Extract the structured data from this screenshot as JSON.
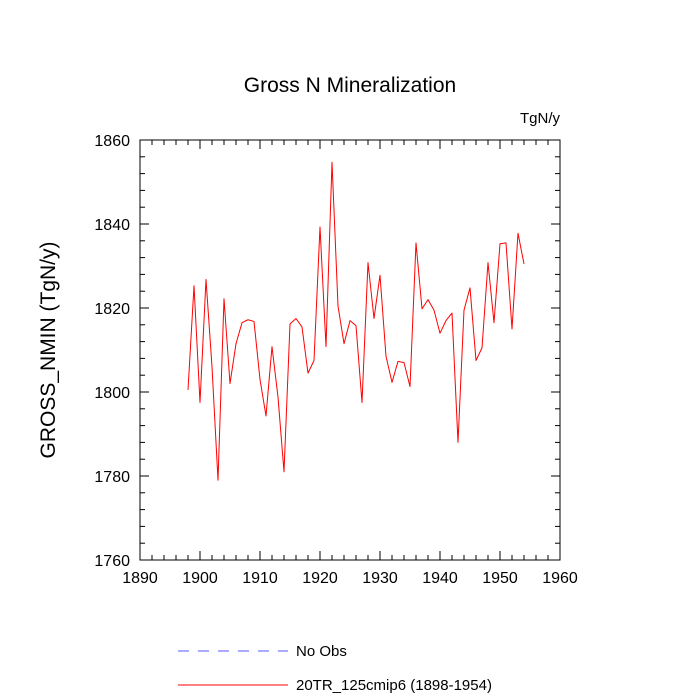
{
  "chart_data": {
    "type": "line",
    "title": "Gross N Mineralization",
    "units_label": "TgN/y",
    "xlabel": "",
    "ylabel": "GROSS_NMIN  (TgN/y)",
    "xlim": [
      1890,
      1960
    ],
    "ylim": [
      1760,
      1860
    ],
    "x_ticks": [
      1890,
      1900,
      1910,
      1920,
      1930,
      1940,
      1950,
      1960
    ],
    "y_ticks": [
      1760,
      1780,
      1800,
      1820,
      1840,
      1860
    ],
    "grid": false,
    "legend_position": "bottom",
    "series": [
      {
        "name": "20TR_125cmip6 (1898-1954)",
        "color": "#ff0000",
        "style": "solid",
        "x": [
          1898,
          1899,
          1900,
          1901,
          1902,
          1903,
          1904,
          1905,
          1906,
          1907,
          1908,
          1909,
          1910,
          1911,
          1912,
          1913,
          1914,
          1915,
          1916,
          1917,
          1918,
          1919,
          1920,
          1921,
          1922,
          1923,
          1924,
          1925,
          1926,
          1927,
          1928,
          1929,
          1930,
          1931,
          1932,
          1933,
          1934,
          1935,
          1936,
          1937,
          1938,
          1939,
          1940,
          1941,
          1942,
          1943,
          1944,
          1945,
          1946,
          1947,
          1948,
          1949,
          1950,
          1951,
          1952,
          1953,
          1954
        ],
        "values": [
          1800.5,
          1825.3,
          1797.5,
          1826.8,
          1806.0,
          1779.0,
          1822.2,
          1802.0,
          1811.5,
          1816.5,
          1817.2,
          1816.8,
          1803.0,
          1794.3,
          1810.8,
          1798.8,
          1781.0,
          1816.2,
          1817.5,
          1815.5,
          1804.5,
          1807.5,
          1839.3,
          1810.8,
          1854.7,
          1820.5,
          1811.5,
          1817.0,
          1815.8,
          1797.5,
          1830.8,
          1817.5,
          1827.8,
          1808.5,
          1802.3,
          1807.3,
          1807.0,
          1801.3,
          1835.5,
          1819.8,
          1822.0,
          1819.5,
          1814.0,
          1817.0,
          1818.8,
          1788.0,
          1819.5,
          1824.8,
          1807.5,
          1810.5,
          1830.8,
          1816.5,
          1835.3,
          1835.5,
          1815.0,
          1837.8,
          1830.5
        ]
      }
    ],
    "legend": [
      {
        "label": "No Obs",
        "color": "#5555ff",
        "style": "dashed"
      },
      {
        "label": "20TR_125cmip6 (1898-1954)",
        "color": "#ff0000",
        "style": "solid"
      }
    ]
  }
}
